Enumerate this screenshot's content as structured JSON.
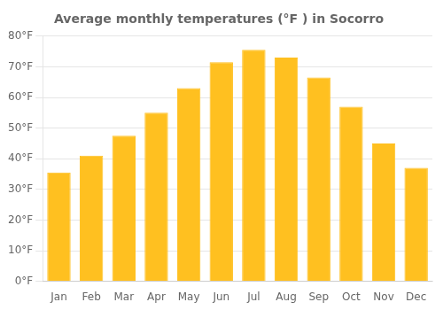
{
  "chart_data": {
    "type": "bar",
    "title": "Average monthly temperatures (°F ) in Socorro",
    "categories": [
      "Jan",
      "Feb",
      "Mar",
      "Apr",
      "May",
      "Jun",
      "Jul",
      "Aug",
      "Sep",
      "Oct",
      "Nov",
      "Dec"
    ],
    "values": [
      35.5,
      41.0,
      47.5,
      55.0,
      63.0,
      71.5,
      75.5,
      73.0,
      66.5,
      57.0,
      45.0,
      37.0
    ],
    "color": "#FFC020",
    "ylim": [
      0,
      80
    ],
    "yticks": [
      {
        "value": 0,
        "label": "0°F"
      },
      {
        "value": 10,
        "label": "10°F"
      },
      {
        "value": 20,
        "label": "20°F"
      },
      {
        "value": 30,
        "label": "30°F"
      },
      {
        "value": 40,
        "label": "40°F"
      },
      {
        "value": 50,
        "label": "50°F"
      },
      {
        "value": 60,
        "label": "60°F"
      },
      {
        "value": 70,
        "label": "70°F"
      },
      {
        "value": 80,
        "label": "80°F"
      }
    ],
    "grid": true
  }
}
